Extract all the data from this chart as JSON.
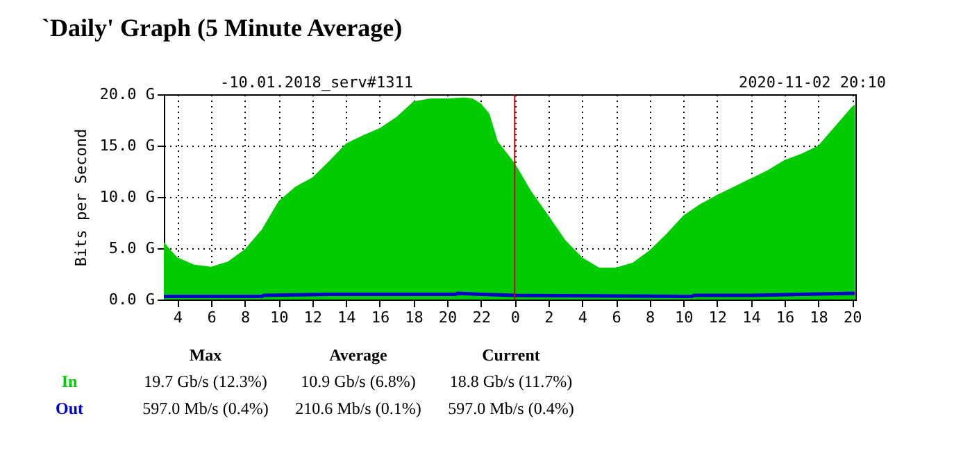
{
  "chart_data": {
    "type": "area",
    "title": "`Daily' Graph (5 Minute Average)",
    "ylabel": "Bits per Second",
    "annotations": [
      "-10.01.2018_serv#1311",
      "2020-11-02 20:10",
      "Max",
      "Average",
      "Current",
      "19.7 Gb/s (12.3%)",
      "10.9 Gb/s (6.8%)",
      "18.8 Gb/s (11.7%)",
      "597.0 Mb/s (0.4%)",
      "210.6 Mb/s (0.1%)",
      "597.0 Mb/s (0.4%)"
    ],
    "xlim": [
      "2020-11-01T03:12",
      "2020-11-02T20:12"
    ],
    "ylim": [
      0,
      20
    ],
    "xticks": [
      {
        "value": "2020-11-01T04:00",
        "label": "4"
      },
      {
        "value": "2020-11-01T06:00",
        "label": "6"
      },
      {
        "value": "2020-11-01T08:00",
        "label": "8"
      },
      {
        "value": "2020-11-01T10:00",
        "label": "10"
      },
      {
        "value": "2020-11-01T12:00",
        "label": "12"
      },
      {
        "value": "2020-11-01T14:00",
        "label": "14"
      },
      {
        "value": "2020-11-01T16:00",
        "label": "16"
      },
      {
        "value": "2020-11-01T18:00",
        "label": "18"
      },
      {
        "value": "2020-11-01T20:00",
        "label": "20"
      },
      {
        "value": "2020-11-01T22:00",
        "label": "22"
      },
      {
        "value": "2020-11-02T00:00",
        "label": "0"
      },
      {
        "value": "2020-11-02T02:00",
        "label": "2"
      },
      {
        "value": "2020-11-02T04:00",
        "label": "4"
      },
      {
        "value": "2020-11-02T06:00",
        "label": "6"
      },
      {
        "value": "2020-11-02T08:00",
        "label": "8"
      },
      {
        "value": "2020-11-02T10:00",
        "label": "10"
      },
      {
        "value": "2020-11-02T12:00",
        "label": "12"
      },
      {
        "value": "2020-11-02T14:00",
        "label": "14"
      },
      {
        "value": "2020-11-02T16:00",
        "label": "16"
      },
      {
        "value": "2020-11-02T18:00",
        "label": "18"
      },
      {
        "value": "2020-11-02T20:00",
        "label": "20"
      }
    ],
    "yticks": [
      {
        "value": 0,
        "label": "0.0 G"
      },
      {
        "value": 5,
        "label": "5.0 G"
      },
      {
        "value": 10,
        "label": "10.0 G"
      },
      {
        "value": 15,
        "label": "15.0 G"
      },
      {
        "value": 20,
        "label": "20.0 G"
      }
    ],
    "grid": true,
    "legend": false,
    "ref_lines": [
      {
        "axis": "x",
        "value": "2020-11-02T00:00",
        "label": null,
        "color": "#cc0000"
      }
    ],
    "series": [
      {
        "name": "In",
        "color": "#00cc00",
        "x": [
          "2020-11-01T03:12",
          "2020-11-01T03:30",
          "2020-11-01T04:00",
          "2020-11-01T05:00",
          "2020-11-01T06:00",
          "2020-11-01T07:00",
          "2020-11-01T08:00",
          "2020-11-01T09:00",
          "2020-11-01T10:00",
          "2020-11-01T11:00",
          "2020-11-01T12:00",
          "2020-11-01T13:00",
          "2020-11-01T14:00",
          "2020-11-01T15:00",
          "2020-11-01T16:00",
          "2020-11-01T17:00",
          "2020-11-01T18:00",
          "2020-11-01T19:00",
          "2020-11-01T20:00",
          "2020-11-01T21:00",
          "2020-11-01T21:30",
          "2020-11-01T22:00",
          "2020-11-01T22:30",
          "2020-11-01T23:00",
          "2020-11-02T00:00",
          "2020-11-02T01:00",
          "2020-11-02T02:00",
          "2020-11-02T03:00",
          "2020-11-02T04:00",
          "2020-11-02T05:00",
          "2020-11-02T06:00",
          "2020-11-02T07:00",
          "2020-11-02T08:00",
          "2020-11-02T09:00",
          "2020-11-02T10:00",
          "2020-11-02T11:00",
          "2020-11-02T12:00",
          "2020-11-02T13:00",
          "2020-11-02T14:00",
          "2020-11-02T15:00",
          "2020-11-02T16:00",
          "2020-11-02T17:00",
          "2020-11-02T18:00",
          "2020-11-02T19:00",
          "2020-11-02T20:00",
          "2020-11-02T20:10"
        ],
        "values": [
          5.6,
          5.0,
          4.1,
          3.4,
          3.2,
          3.7,
          4.9,
          6.8,
          9.6,
          11.0,
          11.9,
          13.5,
          15.2,
          16.0,
          16.7,
          17.8,
          19.3,
          19.6,
          19.6,
          19.7,
          19.6,
          19.1,
          18.1,
          15.4,
          13.3,
          10.5,
          8.2,
          5.8,
          4.1,
          3.1,
          3.1,
          3.6,
          4.8,
          6.4,
          8.2,
          9.3,
          10.2,
          11.0,
          11.8,
          12.6,
          13.6,
          14.2,
          15.0,
          16.9,
          18.8,
          19.0
        ]
      },
      {
        "name": "Out",
        "type": "line",
        "color": "#0000cc",
        "x": [
          "2020-11-01T03:12",
          "2020-11-01T09:00",
          "2020-11-01T09:06",
          "2020-11-01T13:00",
          "2020-11-01T20:30",
          "2020-11-01T20:36",
          "2020-11-01T22:00",
          "2020-11-02T00:00",
          "2020-11-02T10:30",
          "2020-11-02T10:36",
          "2020-11-02T14:00",
          "2020-11-02T17:00",
          "2020-11-02T20:10"
        ],
        "values": [
          0.3,
          0.3,
          0.4,
          0.5,
          0.5,
          0.6,
          0.5,
          0.4,
          0.3,
          0.4,
          0.4,
          0.5,
          0.6
        ]
      }
    ]
  }
}
